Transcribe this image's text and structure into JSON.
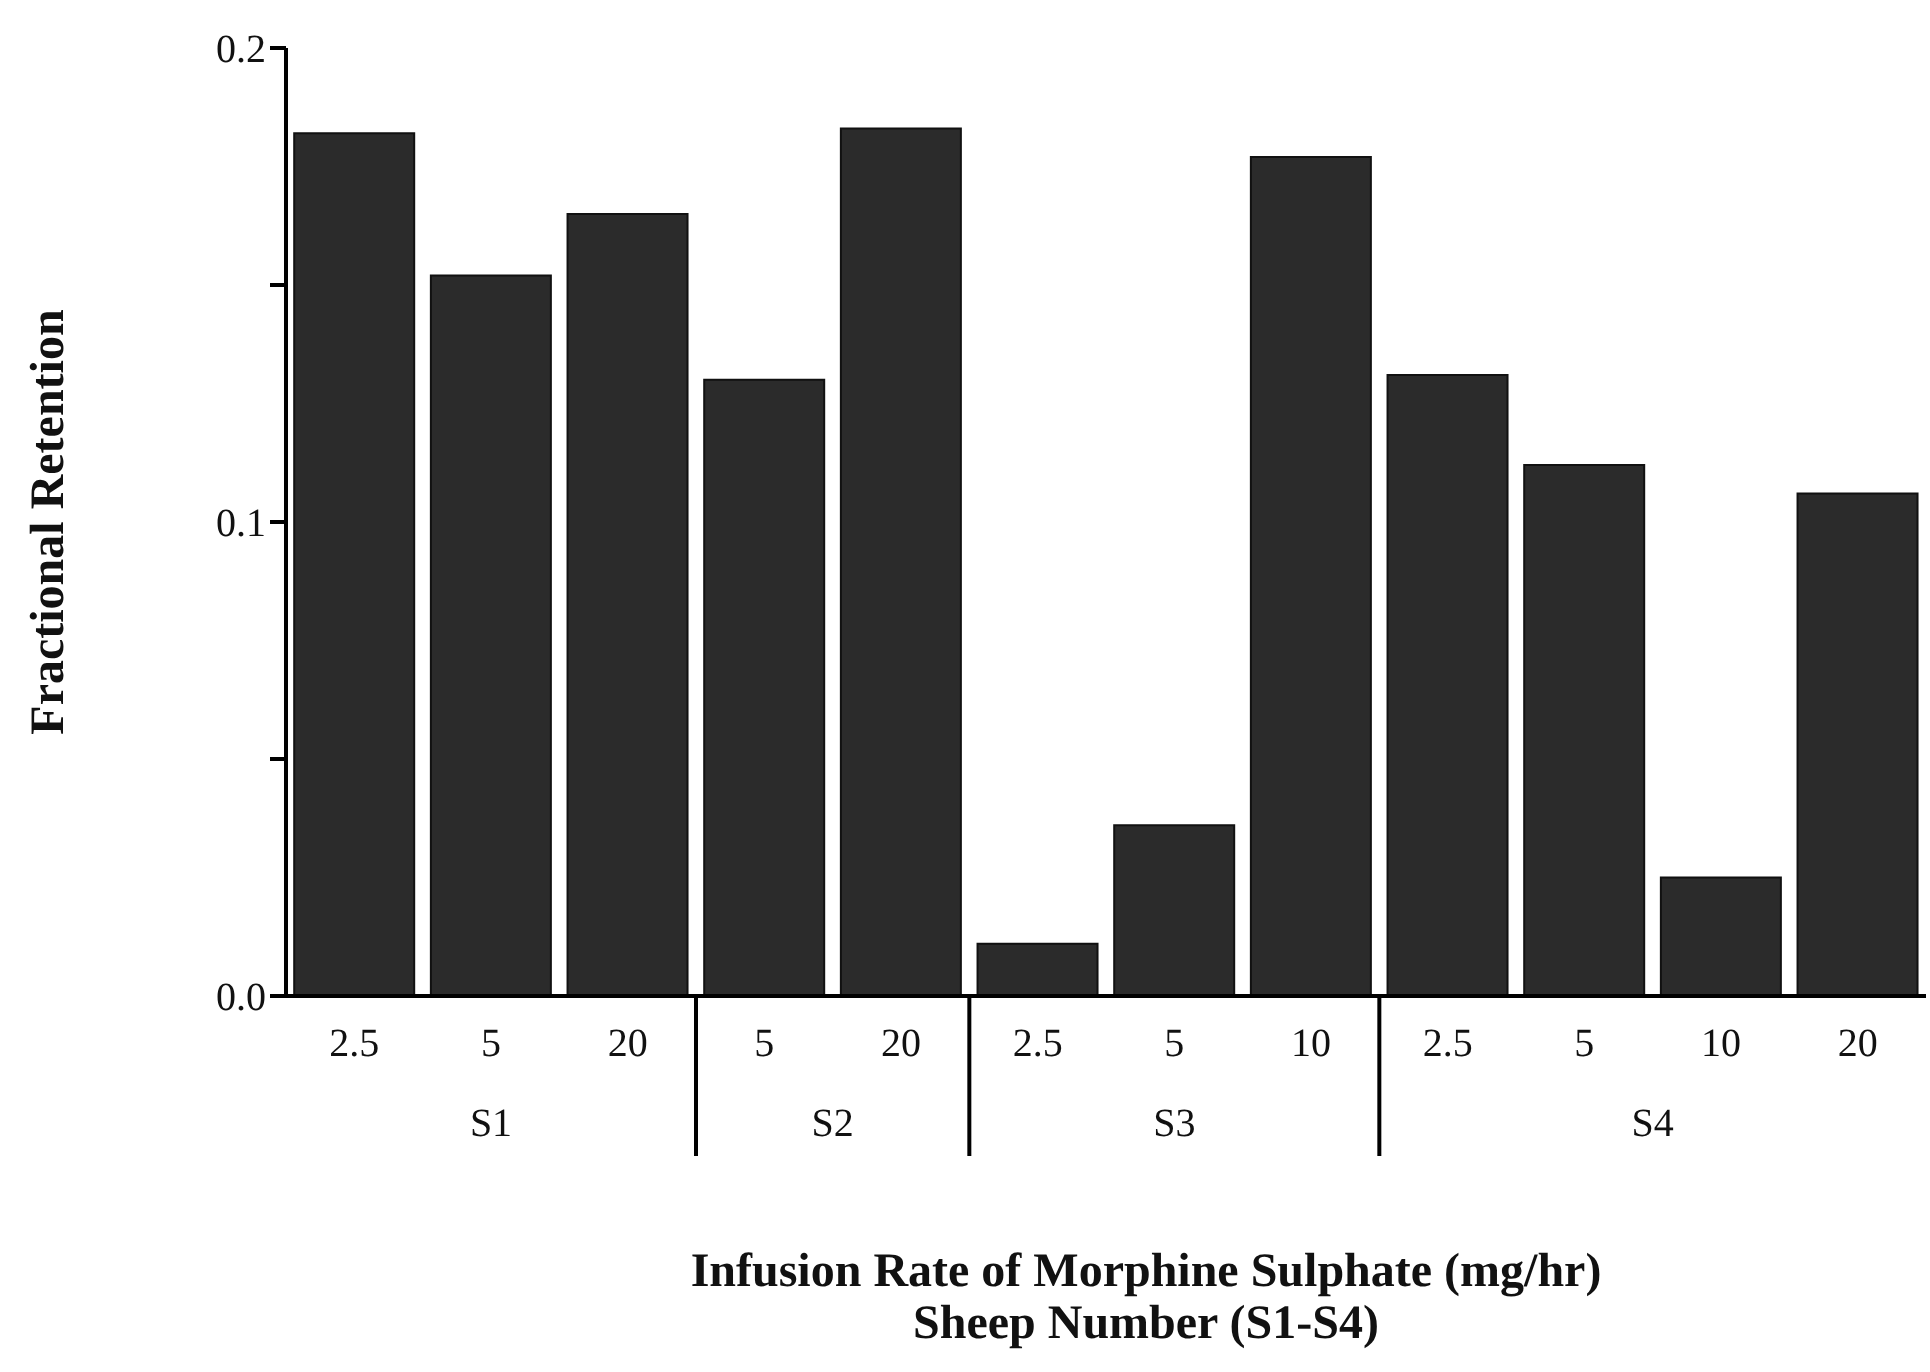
{
  "chart_data": {
    "type": "bar",
    "xlabel": "Infusion Rate of Morphine Sulphate (mg/hr)\nSheep Number (S1-S4)",
    "ylabel": "Fractional Retention",
    "categories": [
      "2.5",
      "5",
      "20",
      "5",
      "20",
      "2.5",
      "5",
      "10",
      "2.5",
      "5",
      "10",
      "20"
    ],
    "values": [
      0.182,
      0.152,
      0.165,
      0.13,
      0.183,
      0.011,
      0.036,
      0.177,
      0.131,
      0.112,
      0.025,
      0.106
    ],
    "color": "#2b2b2b",
    "ylim": [
      0,
      0.2
    ],
    "yticks": [
      {
        "value": 0,
        "label": "0.0"
      },
      {
        "value": 0.05,
        "label": null
      },
      0.1,
      {
        "value": 0.15,
        "label": null
      },
      0.2
    ],
    "annotations": [
      "S1",
      "S2",
      "S3",
      "S4"
    ],
    "grid": false,
    "legend": false
  }
}
